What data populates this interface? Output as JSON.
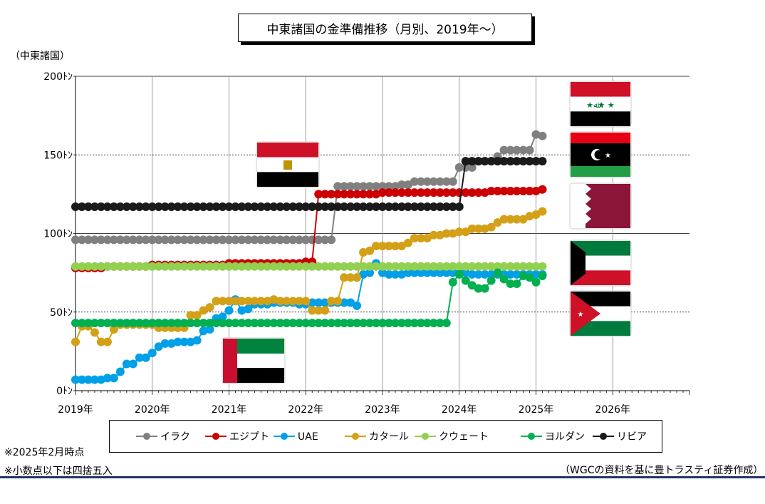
{
  "title": "中東諸国の金準備推移（月別、2019年～）",
  "y_unit_label": "（中東諸国）",
  "notes": {
    "as_of": "※2025年2月時点",
    "rounding": "※小数点以下は四捨五入",
    "source": "（WGCの資料を基に豊トラスティ証券作成）"
  },
  "colors": {
    "axis": "#000000",
    "grid": "#000000"
  },
  "chart_data": {
    "type": "line",
    "x_unit": "month",
    "xlim": [
      "2019-01",
      "2026-12"
    ],
    "ylim": [
      0,
      200
    ],
    "yticks": [
      0,
      50,
      100,
      150,
      200
    ],
    "ytick_labels": [
      "0ﾄﾝ",
      "50ﾄﾝ",
      "100ﾄﾝ",
      "150ﾄﾝ",
      "200ﾄﾝ"
    ],
    "xtick_labels": [
      "2019年",
      "2020年",
      "2021年",
      "2022年",
      "2023年",
      "2024年",
      "2025年",
      "2026年"
    ],
    "gridlines": "horizontal dashed at 50, 150; solid at 100, 200; vertical solid at each year",
    "legend_position": "bottom",
    "series": [
      {
        "name": "イラク",
        "color": "#808080",
        "flag": "iraq-flag-icon",
        "points": [
          [
            "2019-01",
            96
          ],
          [
            "2022-05",
            96
          ],
          [
            "2022-06",
            130
          ],
          [
            "2023-03",
            130
          ],
          [
            "2023-04",
            131
          ],
          [
            "2023-06",
            133
          ],
          [
            "2023-12",
            133
          ],
          [
            "2024-01",
            142
          ],
          [
            "2024-03",
            142
          ],
          [
            "2024-04",
            146
          ],
          [
            "2024-07",
            149
          ],
          [
            "2024-08",
            153
          ],
          [
            "2024-12",
            153
          ],
          [
            "2025-01",
            163
          ],
          [
            "2025-02",
            162
          ]
        ]
      },
      {
        "name": "エジプト",
        "color": "#cc0000",
        "flag": "egypt-flag-icon",
        "points": [
          [
            "2019-01",
            78
          ],
          [
            "2019-05",
            78
          ],
          [
            "2019-06",
            79
          ],
          [
            "2020-01",
            80
          ],
          [
            "2020-12",
            80
          ],
          [
            "2021-01",
            81
          ],
          [
            "2022-01",
            82
          ],
          [
            "2022-02",
            82
          ],
          [
            "2022-03",
            125
          ],
          [
            "2022-06",
            125
          ],
          [
            "2023-01",
            126
          ],
          [
            "2024-01",
            126
          ],
          [
            "2024-06",
            127
          ],
          [
            "2025-01",
            127
          ],
          [
            "2025-02",
            128
          ]
        ]
      },
      {
        "name": "UAE",
        "color": "#00a0e9",
        "flag": "uae-flag-icon",
        "points": [
          [
            "2019-01",
            7
          ],
          [
            "2019-05",
            7
          ],
          [
            "2019-06",
            8
          ],
          [
            "2019-07",
            8
          ],
          [
            "2019-08",
            12
          ],
          [
            "2019-09",
            17
          ],
          [
            "2019-11",
            21
          ],
          [
            "2020-01",
            24
          ],
          [
            "2020-02",
            28
          ],
          [
            "2020-03",
            30
          ],
          [
            "2020-05",
            31
          ],
          [
            "2020-08",
            32
          ],
          [
            "2020-09",
            38
          ],
          [
            "2020-10",
            39
          ],
          [
            "2020-11",
            46
          ],
          [
            "2020-12",
            47
          ],
          [
            "2021-01",
            51
          ],
          [
            "2021-02",
            58
          ],
          [
            "2021-03",
            51
          ],
          [
            "2021-04",
            52
          ],
          [
            "2021-05",
            55
          ],
          [
            "2021-08",
            56
          ],
          [
            "2021-12",
            55
          ],
          [
            "2022-02",
            56
          ],
          [
            "2022-07",
            56
          ],
          [
            "2022-09",
            54
          ],
          [
            "2022-10",
            74
          ],
          [
            "2022-11",
            75
          ],
          [
            "2022-12",
            81
          ],
          [
            "2023-01",
            75
          ],
          [
            "2023-02",
            74
          ],
          [
            "2023-05",
            75
          ],
          [
            "2023-12",
            75
          ],
          [
            "2024-03",
            74
          ],
          [
            "2024-12",
            74
          ],
          [
            "2025-02",
            74
          ]
        ]
      },
      {
        "name": "カタール",
        "color": "#d4a017",
        "flag": "qatar-flag-icon",
        "points": [
          [
            "2019-01",
            31
          ],
          [
            "2019-02",
            41
          ],
          [
            "2019-03",
            41
          ],
          [
            "2019-04",
            37
          ],
          [
            "2019-05",
            31
          ],
          [
            "2019-06",
            31
          ],
          [
            "2019-07",
            39
          ],
          [
            "2019-08",
            42
          ],
          [
            "2020-01",
            42
          ],
          [
            "2020-02",
            40
          ],
          [
            "2020-06",
            40
          ],
          [
            "2020-07",
            48
          ],
          [
            "2020-09",
            51
          ],
          [
            "2020-10",
            53
          ],
          [
            "2020-11",
            57
          ],
          [
            "2021-06",
            57
          ],
          [
            "2021-08",
            58
          ],
          [
            "2021-09",
            57
          ],
          [
            "2022-01",
            57
          ],
          [
            "2022-02",
            51
          ],
          [
            "2022-04",
            51
          ],
          [
            "2022-05",
            57
          ],
          [
            "2022-06",
            57
          ],
          [
            "2022-07",
            72
          ],
          [
            "2022-09",
            72
          ],
          [
            "2022-10",
            88
          ],
          [
            "2022-11",
            89
          ],
          [
            "2022-12",
            92
          ],
          [
            "2023-04",
            92
          ],
          [
            "2023-05",
            94
          ],
          [
            "2023-06",
            97
          ],
          [
            "2023-09",
            99
          ],
          [
            "2023-11",
            100
          ],
          [
            "2024-01",
            101
          ],
          [
            "2024-03",
            103
          ],
          [
            "2024-06",
            104
          ],
          [
            "2024-07",
            107
          ],
          [
            "2024-08",
            109
          ],
          [
            "2024-10",
            109
          ],
          [
            "2024-12",
            111
          ],
          [
            "2025-01",
            112
          ],
          [
            "2025-02",
            114
          ]
        ]
      },
      {
        "name": "クウェート",
        "color": "#92d050",
        "flag": "kuwait-flag-icon",
        "points": [
          [
            "2019-01",
            79
          ],
          [
            "2025-02",
            79
          ]
        ]
      },
      {
        "name": "ヨルダン",
        "color": "#00b050",
        "flag": "jordan-flag-icon",
        "points": [
          [
            "2019-01",
            43
          ],
          [
            "2023-11",
            43
          ],
          [
            "2023-12",
            69
          ],
          [
            "2024-01",
            74
          ],
          [
            "2024-02",
            70
          ],
          [
            "2024-03",
            67
          ],
          [
            "2024-04",
            65
          ],
          [
            "2024-05",
            65
          ],
          [
            "2024-06",
            70
          ],
          [
            "2024-07",
            75
          ],
          [
            "2024-08",
            71
          ],
          [
            "2024-09",
            68
          ],
          [
            "2024-10",
            68
          ],
          [
            "2024-11",
            73
          ],
          [
            "2024-12",
            72
          ],
          [
            "2025-01",
            69
          ],
          [
            "2025-02",
            73
          ]
        ]
      },
      {
        "name": "リビア",
        "color": "#1a1a1a",
        "flag": "libya-flag-icon",
        "points": [
          [
            "2019-01",
            117
          ],
          [
            "2024-01",
            117
          ],
          [
            "2024-02",
            146
          ],
          [
            "2025-02",
            146
          ]
        ]
      }
    ]
  }
}
